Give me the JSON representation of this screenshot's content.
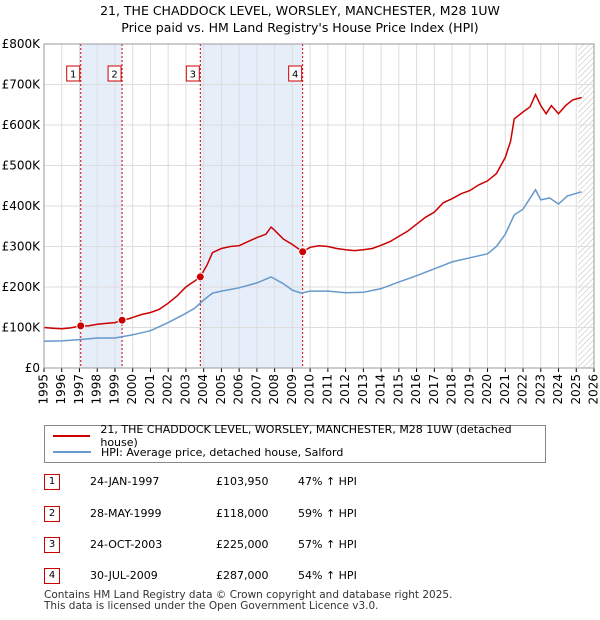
{
  "chart_data": {
    "type": "line",
    "title": "21, THE CHADDOCK LEVEL, WORSLEY, MANCHESTER, M28 1UW",
    "subtitle": "Price paid vs. HM Land Registry's House Price Index (HPI)",
    "xlim": [
      1995,
      2026
    ],
    "ylim": [
      0,
      800000
    ],
    "x_ticks": [
      1995,
      1996,
      1997,
      1998,
      1999,
      2000,
      2001,
      2002,
      2003,
      2004,
      2005,
      2006,
      2007,
      2008,
      2009,
      2010,
      2011,
      2012,
      2013,
      2014,
      2015,
      2016,
      2017,
      2018,
      2019,
      2020,
      2021,
      2022,
      2023,
      2024,
      2025,
      2026
    ],
    "y_ticks": [
      {
        "value": 0,
        "label": "£0"
      },
      {
        "value": 100000,
        "label": "£100K"
      },
      {
        "value": 200000,
        "label": "£200K"
      },
      {
        "value": 300000,
        "label": "£300K"
      },
      {
        "value": 400000,
        "label": "£400K"
      },
      {
        "value": 500000,
        "label": "£500K"
      },
      {
        "value": 600000,
        "label": "£600K"
      },
      {
        "value": 700000,
        "label": "£700K"
      },
      {
        "value": 800000,
        "label": "£800K"
      }
    ],
    "grid": true,
    "shaded_periods": [
      [
        1997.07,
        1999.4
      ],
      [
        2003.81,
        2009.58
      ]
    ],
    "forecast_from": 2025.1,
    "series": [
      {
        "name": "21, THE CHADDOCK LEVEL, WORSLEY, MANCHESTER, M28 1UW (detached house)",
        "color": "#cc0000",
        "points": [
          [
            1995,
            100000
          ],
          [
            1995.5,
            98000
          ],
          [
            1996,
            97000
          ],
          [
            1996.5,
            99000
          ],
          [
            1997.07,
            103950
          ],
          [
            1997.5,
            104000
          ],
          [
            1998,
            108000
          ],
          [
            1998.5,
            110000
          ],
          [
            1999,
            112000
          ],
          [
            1999.4,
            118000
          ],
          [
            1999.8,
            122000
          ],
          [
            2000,
            125000
          ],
          [
            2000.5,
            132000
          ],
          [
            2001,
            137000
          ],
          [
            2001.5,
            145000
          ],
          [
            2002,
            160000
          ],
          [
            2002.5,
            178000
          ],
          [
            2003,
            200000
          ],
          [
            2003.5,
            215000
          ],
          [
            2003.81,
            225000
          ],
          [
            2004.2,
            255000
          ],
          [
            2004.5,
            285000
          ],
          [
            2005,
            295000
          ],
          [
            2005.5,
            300000
          ],
          [
            2006,
            302000
          ],
          [
            2006.5,
            312000
          ],
          [
            2007,
            322000
          ],
          [
            2007.5,
            330000
          ],
          [
            2007.8,
            348000
          ],
          [
            2008,
            340000
          ],
          [
            2008.5,
            318000
          ],
          [
            2009,
            305000
          ],
          [
            2009.58,
            287000
          ],
          [
            2010,
            298000
          ],
          [
            2010.5,
            302000
          ],
          [
            2011,
            300000
          ],
          [
            2011.5,
            295000
          ],
          [
            2012,
            292000
          ],
          [
            2012.5,
            290000
          ],
          [
            2013,
            292000
          ],
          [
            2013.5,
            295000
          ],
          [
            2014,
            303000
          ],
          [
            2014.5,
            312000
          ],
          [
            2015,
            325000
          ],
          [
            2015.5,
            338000
          ],
          [
            2016,
            355000
          ],
          [
            2016.5,
            372000
          ],
          [
            2017,
            385000
          ],
          [
            2017.5,
            408000
          ],
          [
            2018,
            418000
          ],
          [
            2018.5,
            430000
          ],
          [
            2019,
            438000
          ],
          [
            2019.5,
            452000
          ],
          [
            2020,
            462000
          ],
          [
            2020.5,
            480000
          ],
          [
            2021,
            520000
          ],
          [
            2021.3,
            560000
          ],
          [
            2021.5,
            615000
          ],
          [
            2022,
            632000
          ],
          [
            2022.4,
            645000
          ],
          [
            2022.7,
            675000
          ],
          [
            2023,
            648000
          ],
          [
            2023.3,
            628000
          ],
          [
            2023.6,
            648000
          ],
          [
            2024,
            628000
          ],
          [
            2024.4,
            648000
          ],
          [
            2024.8,
            662000
          ],
          [
            2025.3,
            668000
          ]
        ]
      },
      {
        "name": "HPI: Average price, detached house, Salford",
        "color": "#6699cc",
        "points": [
          [
            1995,
            66000
          ],
          [
            1996,
            67000
          ],
          [
            1997,
            70000
          ],
          [
            1998,
            74000
          ],
          [
            1999,
            74000
          ],
          [
            2000,
            82000
          ],
          [
            2001,
            92000
          ],
          [
            2002,
            112000
          ],
          [
            2003,
            135000
          ],
          [
            2003.5,
            148000
          ],
          [
            2004,
            168000
          ],
          [
            2004.5,
            185000
          ],
          [
            2005,
            190000
          ],
          [
            2006,
            198000
          ],
          [
            2007,
            210000
          ],
          [
            2007.8,
            225000
          ],
          [
            2008.5,
            208000
          ],
          [
            2009,
            192000
          ],
          [
            2009.5,
            185000
          ],
          [
            2010,
            190000
          ],
          [
            2011,
            190000
          ],
          [
            2012,
            186000
          ],
          [
            2013,
            187000
          ],
          [
            2014,
            196000
          ],
          [
            2015,
            212000
          ],
          [
            2016,
            228000
          ],
          [
            2017,
            245000
          ],
          [
            2018,
            262000
          ],
          [
            2019,
            272000
          ],
          [
            2020,
            282000
          ],
          [
            2020.5,
            300000
          ],
          [
            2021,
            330000
          ],
          [
            2021.5,
            378000
          ],
          [
            2022,
            392000
          ],
          [
            2022.7,
            440000
          ],
          [
            2023,
            415000
          ],
          [
            2023.5,
            420000
          ],
          [
            2024,
            405000
          ],
          [
            2024.5,
            425000
          ],
          [
            2025.3,
            435000
          ]
        ]
      }
    ],
    "sale_points": [
      {
        "label": "1",
        "x": 1997.07,
        "y": 103950
      },
      {
        "label": "2",
        "x": 1999.4,
        "y": 118000
      },
      {
        "label": "3",
        "x": 2003.81,
        "y": 225000
      },
      {
        "label": "4",
        "x": 2009.58,
        "y": 287000
      }
    ]
  },
  "legend": {
    "items": [
      {
        "label": "21, THE CHADDOCK LEVEL, WORSLEY, MANCHESTER, M28 1UW (detached house)",
        "color": "#cc0000"
      },
      {
        "label": "HPI: Average price, detached house, Salford",
        "color": "#6699cc"
      }
    ]
  },
  "sales": [
    {
      "num": "1",
      "date": "24-JAN-1997",
      "price": "£103,950",
      "hpi": "47% ↑ HPI"
    },
    {
      "num": "2",
      "date": "28-MAY-1999",
      "price": "£118,000",
      "hpi": "59% ↑ HPI"
    },
    {
      "num": "3",
      "date": "24-OCT-2003",
      "price": "£225,000",
      "hpi": "57% ↑ HPI"
    },
    {
      "num": "4",
      "date": "30-JUL-2009",
      "price": "£287,000",
      "hpi": "54% ↑ HPI"
    }
  ],
  "footer": {
    "line1": "Contains HM Land Registry data © Crown copyright and database right 2025.",
    "line2": "This data is licensed under the Open Government Licence v3.0."
  }
}
